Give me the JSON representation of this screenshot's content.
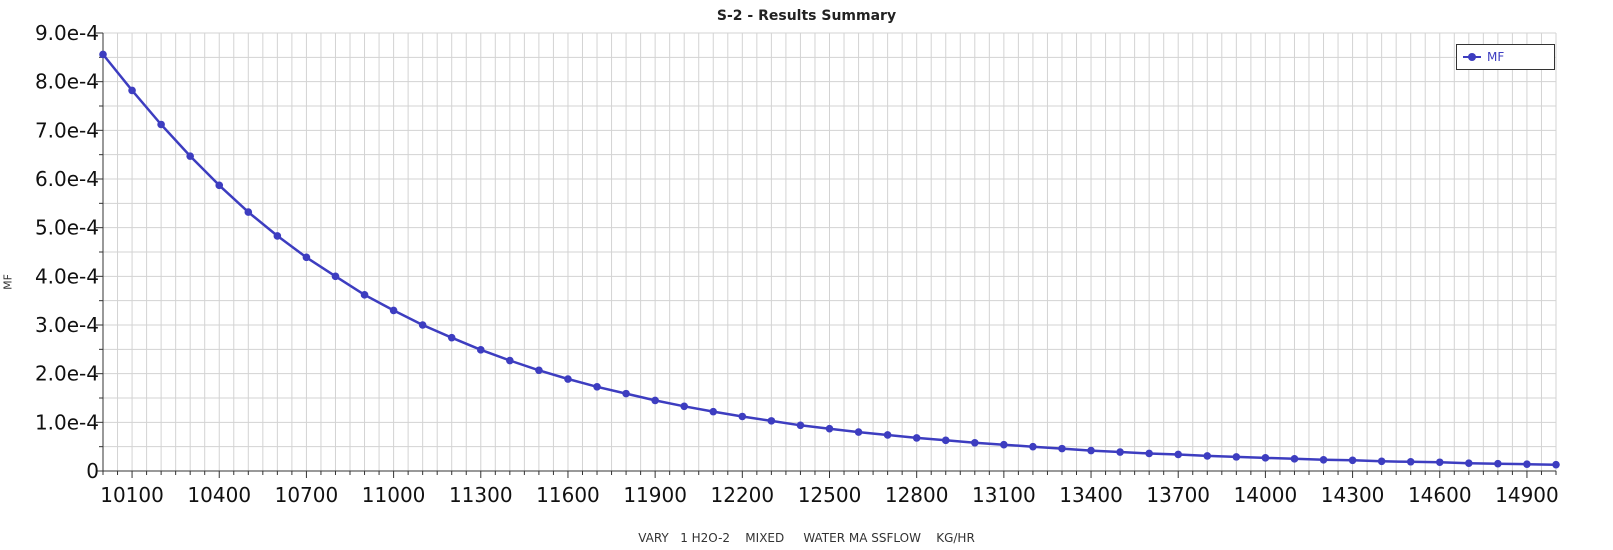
{
  "chart_data": {
    "type": "line",
    "title": "S-2 - Results Summary",
    "xlabel": "VARY   1 H2O-2    MIXED     WATER MA SSFLOW    KG/HR",
    "ylabel": "MF",
    "xlim": [
      10000,
      15000
    ],
    "ylim": [
      0,
      0.0009
    ],
    "x_ticks": [
      10100,
      10400,
      10700,
      11000,
      11300,
      11600,
      11900,
      12200,
      12500,
      12800,
      13100,
      13400,
      13700,
      14000,
      14300,
      14600,
      14900
    ],
    "x_tick_labels": [
      "10100",
      "10400",
      "10700",
      "11000",
      "11300",
      "11600",
      "11900",
      "12200",
      "12500",
      "12800",
      "13100",
      "13400",
      "13700",
      "14000",
      "14300",
      "14600",
      "14900"
    ],
    "y_ticks": [
      0,
      0.0001,
      0.0002,
      0.0003,
      0.0004,
      0.0005,
      0.0006,
      0.0007,
      0.0008,
      0.0009
    ],
    "y_tick_labels": [
      "0",
      "1.0e-4",
      "2.0e-4",
      "3.0e-4",
      "4.0e-4",
      "5.0e-4",
      "6.0e-4",
      "7.0e-4",
      "8.0e-4",
      "9.0e-4"
    ],
    "grid": true,
    "legend_position": "top-right",
    "colors": {
      "series": "#3d3dc0",
      "grid": "#d3d3d3",
      "axis": "#333333"
    },
    "x": [
      10000,
      10100,
      10200,
      10300,
      10400,
      10500,
      10600,
      10700,
      10800,
      10900,
      11000,
      11100,
      11200,
      11300,
      11400,
      11500,
      11600,
      11700,
      11800,
      11900,
      12000,
      12100,
      12200,
      12300,
      12400,
      12500,
      12600,
      12700,
      12800,
      12900,
      13000,
      13100,
      13200,
      13300,
      13400,
      13500,
      13600,
      13700,
      13800,
      13900,
      14000,
      14100,
      14200,
      14300,
      14400,
      14500,
      14600,
      14700,
      14800,
      14900,
      15000
    ],
    "series": [
      {
        "name": "MF",
        "values": [
          0.000856,
          0.000782,
          0.000712,
          0.000647,
          0.000587,
          0.000532,
          0.000483,
          0.000439,
          0.0004,
          0.000362,
          0.00033,
          0.0003,
          0.000274,
          0.000249,
          0.000227,
          0.000207,
          0.000189,
          0.000173,
          0.000159,
          0.000145,
          0.000133,
          0.000122,
          0.000112,
          0.000103,
          9.4e-05,
          8.7e-05,
          8e-05,
          7.4e-05,
          6.8e-05,
          6.3e-05,
          5.8e-05,
          5.4e-05,
          5e-05,
          4.6e-05,
          4.2e-05,
          3.9e-05,
          3.6e-05,
          3.4e-05,
          3.1e-05,
          2.9e-05,
          2.7e-05,
          2.5e-05,
          2.3e-05,
          2.2e-05,
          2e-05,
          1.9e-05,
          1.8e-05,
          1.6e-05,
          1.5e-05,
          1.4e-05,
          1.3e-05
        ]
      }
    ]
  }
}
